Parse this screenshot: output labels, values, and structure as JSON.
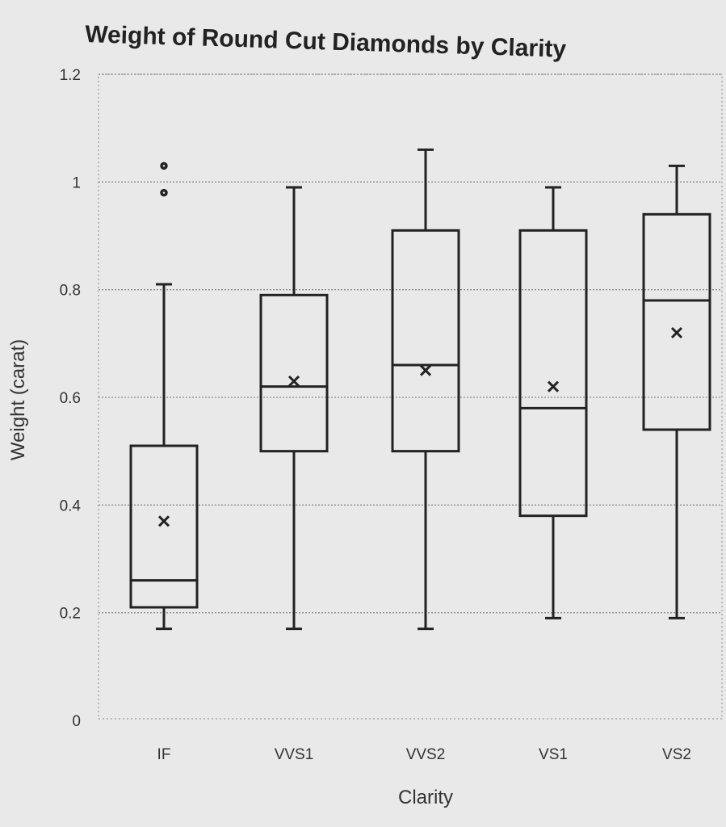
{
  "chart_data": {
    "type": "box",
    "title": "Weight of Round Cut Diamonds by Clarity",
    "xlabel": "Clarity",
    "ylabel": "Weight (carat)",
    "ylim": [
      0,
      1.2
    ],
    "yticks": [
      "0",
      "0.2",
      "0.4",
      "0.6",
      "0.8",
      "1",
      "1.2"
    ],
    "grid": true,
    "categories": [
      "IF",
      "VVS1",
      "VVS2",
      "VS1",
      "VS2"
    ],
    "boxes": [
      {
        "category": "IF",
        "min": 0.17,
        "q1": 0.21,
        "median": 0.26,
        "q3": 0.51,
        "max": 0.81,
        "mean": 0.37,
        "outliers": [
          0.98,
          1.03
        ]
      },
      {
        "category": "VVS1",
        "min": 0.17,
        "q1": 0.5,
        "median": 0.62,
        "q3": 0.79,
        "max": 0.99,
        "mean": 0.63,
        "outliers": []
      },
      {
        "category": "VVS2",
        "min": 0.17,
        "q1": 0.5,
        "median": 0.66,
        "q3": 0.91,
        "max": 1.06,
        "mean": 0.65,
        "outliers": []
      },
      {
        "category": "VS1",
        "min": 0.19,
        "q1": 0.38,
        "median": 0.58,
        "q3": 0.91,
        "max": 0.99,
        "mean": 0.62,
        "outliers": []
      },
      {
        "category": "VS2",
        "min": 0.19,
        "q1": 0.54,
        "median": 0.78,
        "q3": 0.94,
        "max": 1.03,
        "mean": 0.72,
        "outliers": []
      }
    ]
  }
}
